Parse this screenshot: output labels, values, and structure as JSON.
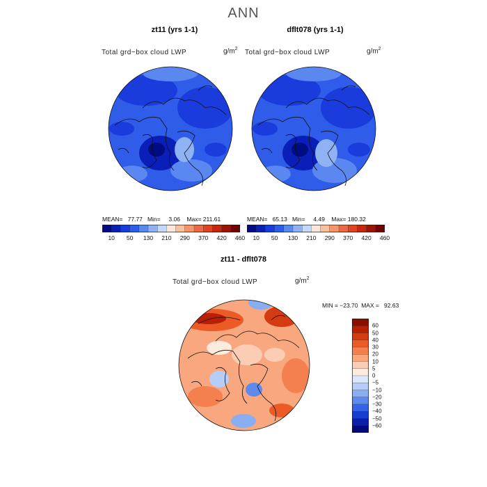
{
  "title": "ANN",
  "panels": [
    {
      "title": "zt11 (yrs 1-1)",
      "variable": "Total grd−box cloud LWP",
      "units": "g/m",
      "units_exp": "2",
      "stats": "MEAN=   77.77   Min=     3.06    Max= 211.61"
    },
    {
      "title": "dflt078 (yrs 1-1)",
      "variable": "Total grd−box cloud LWP",
      "units": "g/m",
      "units_exp": "2",
      "stats": "MEAN=   65.13   Min=     4.49    Max= 180.32"
    }
  ],
  "diff_panel": {
    "title": "zt11 - dflt078",
    "variable": "Total grd−box cloud LWP",
    "units": "g/m",
    "units_exp": "2",
    "stats": "MIN = −23.70  MAX =   92.63"
  },
  "chart_data": [
    {
      "type": "heatmap",
      "subtype": "polar-stereographic map (north pole)",
      "title": "zt11 (yrs 1-1)",
      "field": "Total grd-box cloud LWP",
      "units": "g/m^2",
      "mean": 77.77,
      "min": 3.06,
      "max": 211.61,
      "colorbar": {
        "tick_labels": [
          "10",
          "50",
          "130",
          "210",
          "290",
          "370",
          "420",
          "460"
        ],
        "colors": [
          "#000c80",
          "#0a1fb8",
          "#1a3cdc",
          "#2f5ce8",
          "#5a87f0",
          "#8fb2f5",
          "#c4d8fa",
          "#fbe6d8",
          "#f7c09e",
          "#f2956c",
          "#ea6a45",
          "#de4520",
          "#c5280f",
          "#9d1407",
          "#6e0600"
        ]
      }
    },
    {
      "type": "heatmap",
      "subtype": "polar-stereographic map (north pole)",
      "title": "dflt078 (yrs 1-1)",
      "field": "Total grd-box cloud LWP",
      "units": "g/m^2",
      "mean": 65.13,
      "min": 4.49,
      "max": 180.32,
      "colorbar": {
        "tick_labels": [
          "10",
          "50",
          "130",
          "210",
          "290",
          "370",
          "420",
          "460"
        ],
        "colors": [
          "#000c80",
          "#0a1fb8",
          "#1a3cdc",
          "#2f5ce8",
          "#5a87f0",
          "#8fb2f5",
          "#c4d8fa",
          "#fbe6d8",
          "#f7c09e",
          "#f2956c",
          "#ea6a45",
          "#de4520",
          "#c5280f",
          "#9d1407",
          "#6e0600"
        ]
      }
    },
    {
      "type": "heatmap",
      "subtype": "polar-stereographic map (north pole), difference",
      "title": "zt11 - dflt078",
      "field": "Total grd-box cloud LWP",
      "units": "g/m^2",
      "min": -23.7,
      "max": 92.63,
      "colorbar": {
        "tick_labels": [
          "60",
          "50",
          "40",
          "30",
          "20",
          "10",
          "5",
          "0",
          "−5",
          "−10",
          "−20",
          "−30",
          "−40",
          "−50",
          "−60"
        ],
        "colors": [
          "#8a0d00",
          "#b81f05",
          "#d63a10",
          "#ec5a25",
          "#f5804f",
          "#f9a77f",
          "#fccdb5",
          "#fdebe0",
          "#dbe8fb",
          "#b6cef7",
          "#8aaef2",
          "#5f8aed",
          "#3764e6",
          "#163fd2",
          "#0d1fa8",
          "#030a7a"
        ]
      }
    }
  ]
}
